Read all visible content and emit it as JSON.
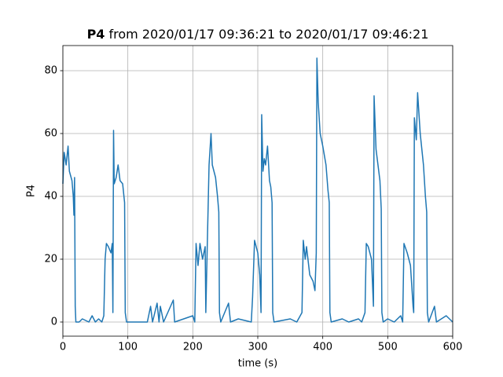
{
  "chart_data": {
    "type": "line",
    "title_bold": "P4",
    "title": "from 2020/01/17 09:36:21 to 2020/01/17 09:46:21",
    "x_label": "time (s)",
    "y_label": "P4",
    "xlim": [
      0,
      600
    ],
    "ylim": [
      -4.5,
      88
    ],
    "xticks": [
      0,
      100,
      200,
      300,
      400,
      500,
      600
    ],
    "yticks": [
      0,
      20,
      40,
      60,
      80
    ],
    "grid": true,
    "x": [
      0,
      2,
      5,
      8,
      10,
      14,
      16,
      17,
      18,
      19,
      20,
      25,
      30,
      40,
      45,
      50,
      55,
      60,
      63,
      65,
      67,
      70,
      74,
      76,
      77,
      78,
      79,
      82,
      85,
      88,
      92,
      95,
      96,
      98,
      130,
      135,
      138,
      145,
      148,
      150,
      155,
      170,
      172,
      200,
      203,
      205,
      208,
      211,
      215,
      219,
      220,
      222,
      225,
      228,
      230,
      235,
      238,
      240,
      241,
      243,
      255,
      258,
      270,
      290,
      292,
      295,
      300,
      303,
      305,
      306,
      308,
      310,
      312,
      315,
      318,
      320,
      322,
      323,
      325,
      350,
      360,
      368,
      370,
      373,
      375,
      380,
      385,
      388,
      390,
      391,
      393,
      396,
      400,
      405,
      408,
      410,
      411,
      413,
      430,
      440,
      455,
      460,
      465,
      467,
      470,
      475,
      478,
      479,
      482,
      485,
      488,
      490,
      491,
      493,
      500,
      510,
      520,
      523,
      525,
      530,
      535,
      539,
      540,
      541,
      544,
      546,
      550,
      555,
      558,
      560,
      561,
      563,
      572,
      575,
      590,
      600
    ],
    "series": [
      {
        "color": "#1f77b4",
        "values": [
          44,
          54,
          50,
          56,
          48,
          45,
          40,
          34,
          46,
          5,
          0,
          0,
          1,
          0,
          2,
          0,
          1,
          0,
          2,
          20,
          25,
          24,
          22,
          25,
          3,
          61,
          44,
          46,
          50,
          45,
          44,
          38,
          3,
          0,
          0,
          5,
          0,
          6,
          0,
          5,
          0,
          7,
          0,
          2,
          0,
          25,
          18,
          25,
          20,
          24,
          3,
          22,
          50,
          60,
          50,
          46,
          40,
          35,
          3,
          0,
          6,
          0,
          1,
          0,
          8,
          26,
          22,
          15,
          3,
          66,
          48,
          52,
          50,
          56,
          45,
          43,
          38,
          3,
          0,
          1,
          0,
          3,
          26,
          20,
          24,
          15,
          13,
          10,
          22,
          84,
          70,
          60,
          56,
          50,
          42,
          38,
          3,
          0,
          1,
          0,
          1,
          0,
          3,
          25,
          24,
          20,
          5,
          72,
          55,
          50,
          45,
          36,
          3,
          0,
          1,
          0,
          2,
          0,
          25,
          22,
          18,
          5,
          3,
          65,
          58,
          73,
          60,
          50,
          40,
          35,
          3,
          0,
          5,
          0,
          2,
          0
        ]
      }
    ]
  }
}
